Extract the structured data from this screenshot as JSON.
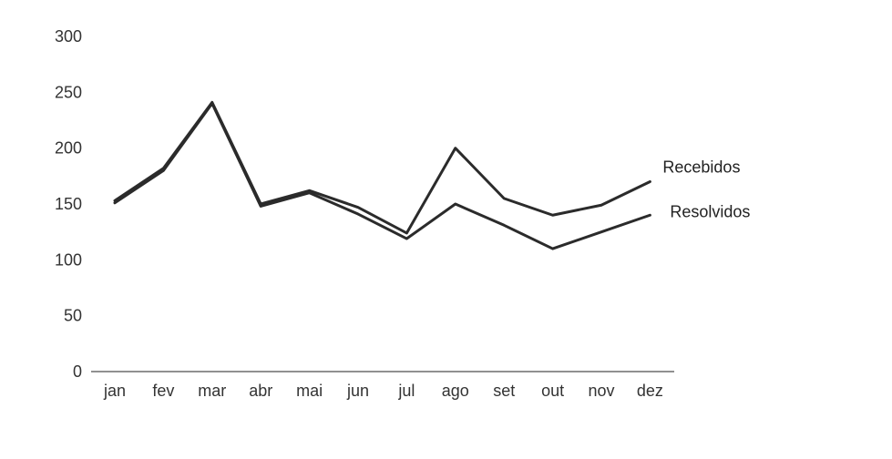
{
  "chart_data": {
    "type": "line",
    "categories": [
      "jan",
      "fev",
      "mar",
      "abr",
      "mai",
      "jun",
      "jul",
      "ago",
      "set",
      "out",
      "nov",
      "dez"
    ],
    "series": [
      {
        "name": "Recebidos",
        "values": [
          153,
          182,
          241,
          150,
          162,
          147,
          124,
          200,
          155,
          140,
          149,
          170
        ],
        "color": "#2b2b2b"
      },
      {
        "name": "Resolvidos",
        "values": [
          151,
          180,
          240,
          148,
          160,
          141,
          119,
          150,
          131,
          110,
          125,
          140
        ],
        "color": "#2b2b2b"
      }
    ],
    "yticks": [
      0,
      50,
      100,
      150,
      200,
      250,
      300
    ],
    "ylim": [
      0,
      300
    ],
    "grid": false,
    "legend": "series labels at line ends (right)",
    "axis_color": "#6b6b6b",
    "text_color": "#333333"
  }
}
